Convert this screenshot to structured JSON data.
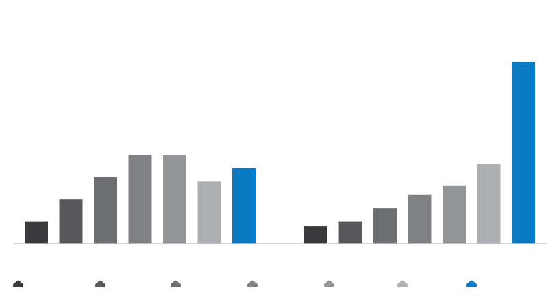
{
  "chart_data": {
    "type": "bar",
    "title": "",
    "xlabel": "",
    "ylabel": "",
    "ylim": [
      0,
      100
    ],
    "grid": false,
    "legend": "bottom",
    "groups": [
      {
        "values": [
          10,
          20,
          30,
          40,
          40,
          28,
          34
        ]
      },
      {
        "values": [
          8,
          10,
          16,
          22,
          26,
          36,
          82
        ]
      }
    ],
    "colors": [
      "#3a3a3c",
      "#58585a",
      "#6d6e71",
      "#808184",
      "#939598",
      "#aeafb2",
      "#0a7ac5"
    ],
    "legend_items": [
      {
        "icon": "cloud-icon",
        "color": "#3a3a3c"
      },
      {
        "icon": "cloud-icon",
        "color": "#58585a"
      },
      {
        "icon": "cloud-icon",
        "color": "#6d6e71"
      },
      {
        "icon": "cloud-icon",
        "color": "#808184"
      },
      {
        "icon": "cloud-icon",
        "color": "#939598"
      },
      {
        "icon": "cloud-icon",
        "color": "#aeafb2"
      },
      {
        "icon": "cloud-icon",
        "color": "#0a7ac5"
      }
    ]
  }
}
